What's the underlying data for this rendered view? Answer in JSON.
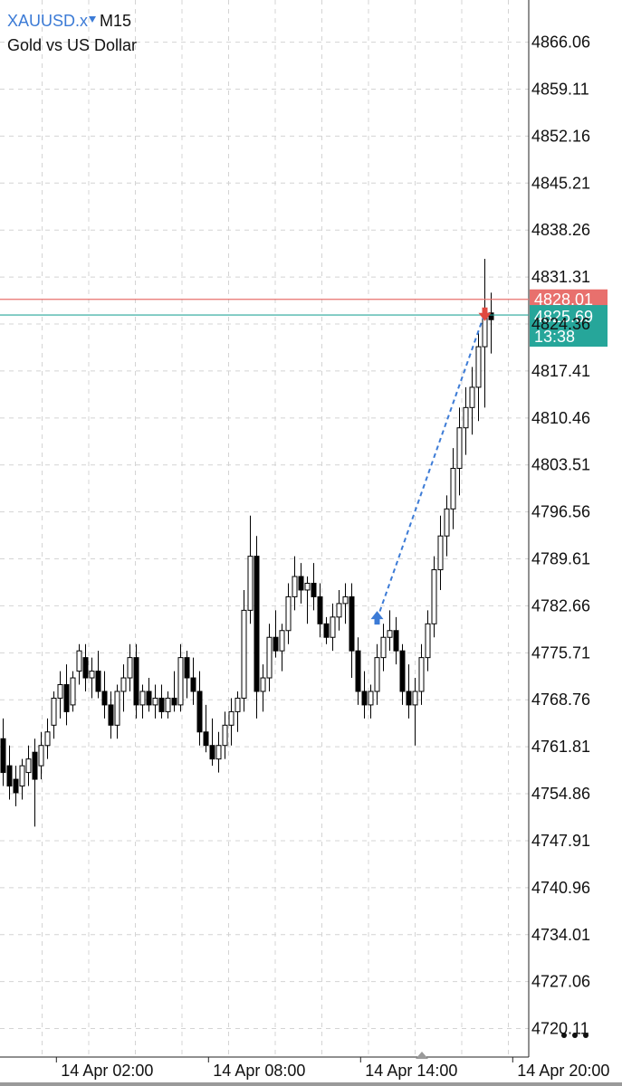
{
  "header": {
    "symbol": "XAUUSD.x",
    "timeframe": "M15",
    "description": "Gold vs US Dollar"
  },
  "colors": {
    "bull_candle": "#ffffff",
    "bear_candle": "#000000",
    "sell_line": "#e8706d",
    "bid_line": "#26a69a",
    "arrow": "#3c7bd6",
    "grid": "#d4d4d4"
  },
  "icons": {
    "menu": "more-dots-icon",
    "buy_arrow": "arrow-up-icon",
    "sell_arrow": "arrow-down-icon",
    "scroll": "scroll-handle-icon"
  },
  "chart_data": {
    "type": "candlestick",
    "ylim": [
      4715.9,
      4872.3
    ],
    "y_ticks": [
      "4866.06",
      "4859.11",
      "4852.16",
      "4845.21",
      "4838.26",
      "4831.31",
      "4824.36",
      "4817.41",
      "4810.46",
      "4803.51",
      "4796.56",
      "4789.61",
      "4782.66",
      "4775.71",
      "4768.76",
      "4761.81",
      "4754.86",
      "4747.91",
      "4740.96",
      "4734.01",
      "4727.06",
      "4720.11"
    ],
    "x_ticks": [
      {
        "label": "14 Apr 02:00",
        "index": 8.4
      },
      {
        "label": "14 Apr 08:00",
        "index": 32.4
      },
      {
        "label": "14 Apr 14:00",
        "index": 56.4
      },
      {
        "label": "14 Apr 20:00",
        "index": 80.4
      }
    ],
    "price_lines": [
      {
        "name": "ask",
        "value": 4828.01,
        "label": "4828.01"
      },
      {
        "name": "bid",
        "value": 4825.69,
        "label": "4825.69",
        "countdown": "13:38"
      }
    ],
    "trade": {
      "entry_index": 59,
      "entry_price": 4780.7,
      "exit_index": 76,
      "exit_price": 4826.0
    },
    "candles": [
      [
        4763,
        4766,
        4756,
        4758
      ],
      [
        4759,
        4762,
        4754,
        4756
      ],
      [
        4757,
        4759,
        4753,
        4755
      ],
      [
        4756,
        4760,
        4754,
        4759
      ],
      [
        4758,
        4762,
        4756,
        4760
      ],
      [
        4761,
        4763,
        4750,
        4757
      ],
      [
        4759,
        4764,
        4757,
        4762
      ],
      [
        4762,
        4766,
        4760,
        4764
      ],
      [
        4765,
        4770,
        4763,
        4769
      ],
      [
        4769,
        4773,
        4766,
        4771
      ],
      [
        4771,
        4774,
        4765,
        4767
      ],
      [
        4768,
        4773,
        4767,
        4772
      ],
      [
        4773,
        4777,
        4771,
        4776
      ],
      [
        4775,
        4777,
        4770,
        4772
      ],
      [
        4772,
        4775,
        4769,
        4773
      ],
      [
        4773,
        4776,
        4769,
        4770
      ],
      [
        4770,
        4773,
        4766,
        4768
      ],
      [
        4768,
        4770,
        4763,
        4765
      ],
      [
        4765,
        4771,
        4763,
        4770
      ],
      [
        4770,
        4774,
        4767,
        4772
      ],
      [
        4772,
        4777,
        4770,
        4775
      ],
      [
        4775,
        4777,
        4766,
        4768
      ],
      [
        4768,
        4771,
        4766,
        4770
      ],
      [
        4770,
        4772,
        4767,
        4768
      ],
      [
        4768,
        4771,
        4766,
        4769
      ],
      [
        4769,
        4771,
        4766,
        4767
      ],
      [
        4767,
        4770,
        4766,
        4769
      ],
      [
        4769,
        4773,
        4767,
        4768
      ],
      [
        4768,
        4777,
        4767,
        4775
      ],
      [
        4775,
        4776,
        4769,
        4772
      ],
      [
        4772,
        4775,
        4768,
        4770
      ],
      [
        4770,
        4773,
        4762,
        4764
      ],
      [
        4764,
        4768,
        4761,
        4762
      ],
      [
        4762,
        4766,
        4759,
        4760
      ],
      [
        4760,
        4764,
        4758,
        4762
      ],
      [
        4762,
        4767,
        4760,
        4765
      ],
      [
        4765,
        4769,
        4762,
        4767
      ],
      [
        4767,
        4770,
        4764,
        4769
      ],
      [
        4769,
        4785,
        4767,
        4782
      ],
      [
        4782,
        4796,
        4780,
        4790
      ],
      [
        4790,
        4793,
        4766,
        4770
      ],
      [
        4770,
        4774,
        4767,
        4772
      ],
      [
        4772,
        4780,
        4770,
        4778
      ],
      [
        4778,
        4782,
        4775,
        4776
      ],
      [
        4776,
        4780,
        4773,
        4779
      ],
      [
        4779,
        4786,
        4777,
        4784
      ],
      [
        4784,
        4790,
        4782,
        4787
      ],
      [
        4787,
        4789,
        4783,
        4785
      ],
      [
        4785,
        4787,
        4780,
        4786
      ],
      [
        4786,
        4789,
        4782,
        4784
      ],
      [
        4784,
        4786,
        4778,
        4780
      ],
      [
        4780,
        4781,
        4777,
        4778
      ],
      [
        4778,
        4783,
        4776,
        4781
      ],
      [
        4781,
        4785,
        4779,
        4783
      ],
      [
        4783,
        4786,
        4780,
        4784
      ],
      [
        4784,
        4786,
        4772,
        4776
      ],
      [
        4776,
        4778,
        4768,
        4770
      ],
      [
        4770,
        4773,
        4766,
        4768
      ],
      [
        4768,
        4771,
        4766,
        4770
      ],
      [
        4770,
        4777,
        4768,
        4775
      ],
      [
        4775,
        4780,
        4773,
        4778
      ],
      [
        4778,
        4782,
        4776,
        4779
      ],
      [
        4779,
        4781,
        4774,
        4776
      ],
      [
        4776,
        4777,
        4768,
        4770
      ],
      [
        4770,
        4774,
        4766,
        4768
      ],
      [
        4768,
        4772,
        4762,
        4770
      ],
      [
        4770,
        4777,
        4768,
        4775
      ],
      [
        4775,
        4782,
        4773,
        4780
      ],
      [
        4780,
        4790,
        4778,
        4788
      ],
      [
        4788,
        4796,
        4785,
        4793
      ],
      [
        4793,
        4799,
        4790,
        4797
      ],
      [
        4797,
        4806,
        4794,
        4803
      ],
      [
        4803,
        4812,
        4799,
        4809
      ],
      [
        4809,
        4815,
        4805,
        4812
      ],
      [
        4812,
        4818,
        4808,
        4815
      ],
      [
        4815,
        4823,
        4810,
        4821
      ],
      [
        4821,
        4834,
        4812,
        4826
      ],
      [
        4826,
        4829,
        4820,
        4825
      ]
    ]
  },
  "view": {
    "first_index": -0.5,
    "slot_width": 7.0
  }
}
